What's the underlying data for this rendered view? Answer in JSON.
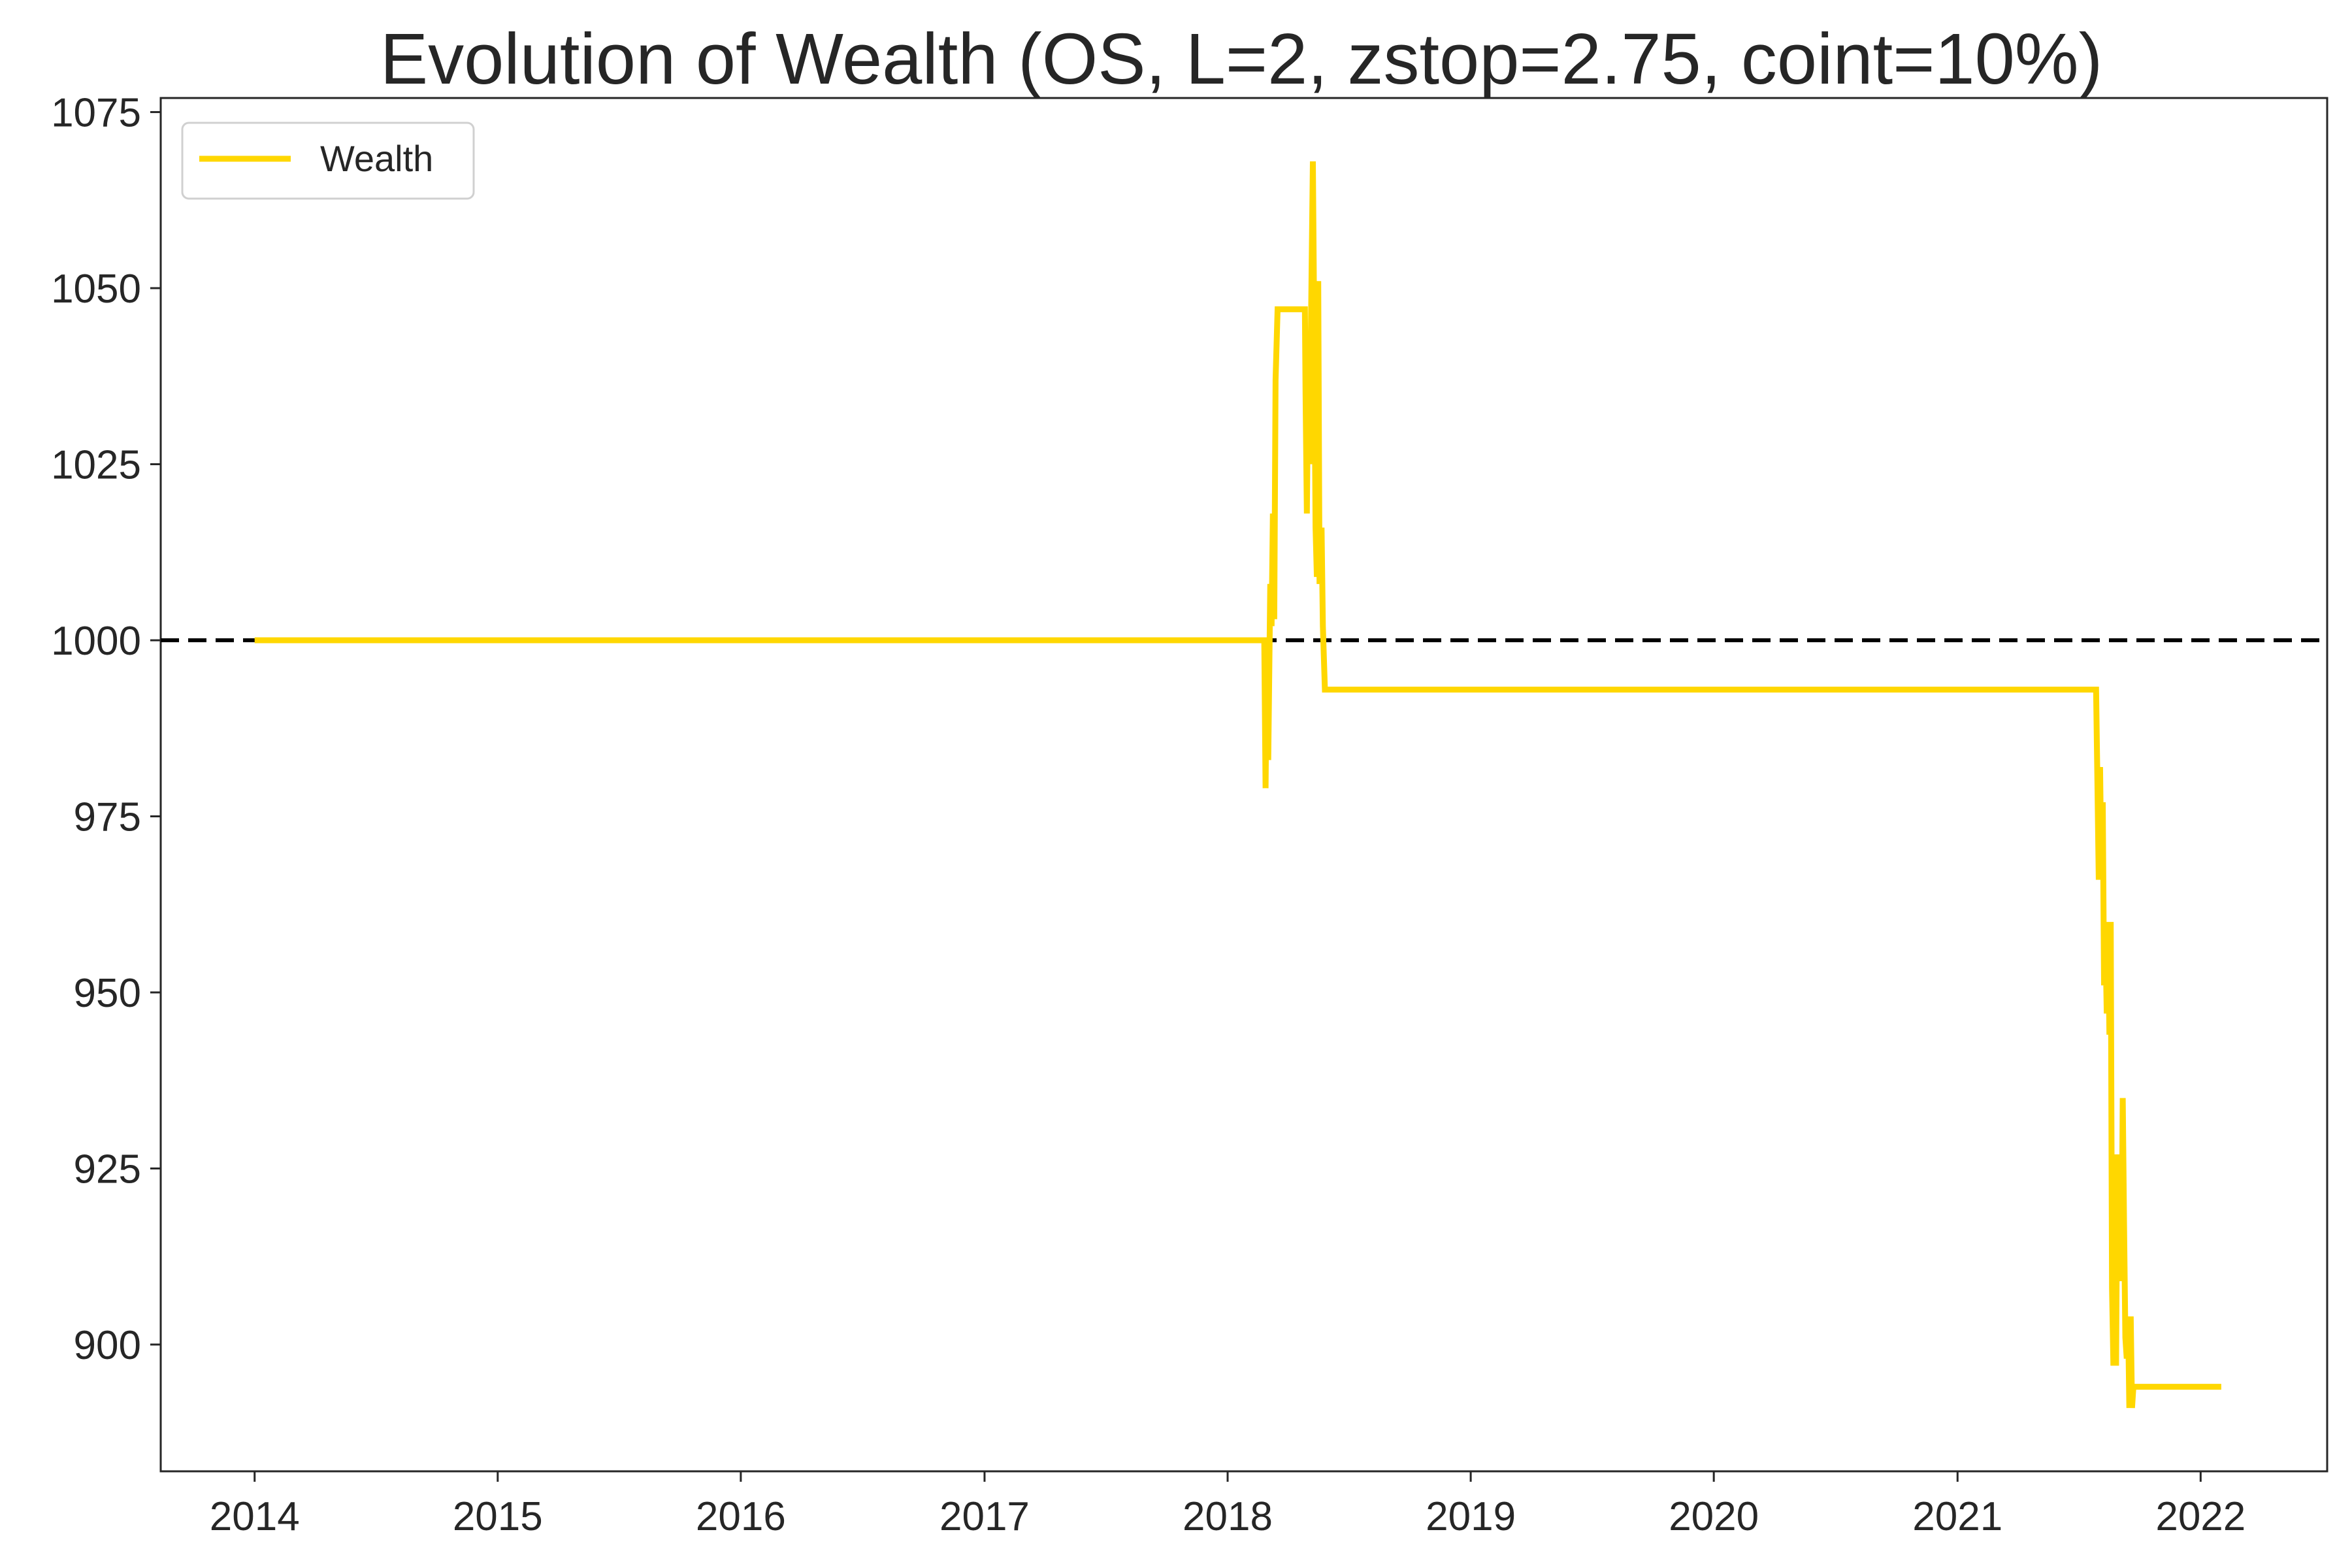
{
  "chart_data": {
    "type": "line",
    "title": "Evolution of Wealth (OS, L=2, zstop=2.75, coint=10%)",
    "xlabel": "",
    "ylabel": "",
    "x_type": "date",
    "xlim": [
      "2013-08-13",
      "2022-07-10"
    ],
    "ylim": [
      882,
      1077
    ],
    "x_ticks": [
      "2014",
      "2015",
      "2016",
      "2017",
      "2018",
      "2019",
      "2020",
      "2021",
      "2022"
    ],
    "y_ticks": [
      900,
      925,
      950,
      975,
      1000,
      1025,
      1050,
      1075
    ],
    "grid": false,
    "legend": {
      "position": "upper left",
      "entries": [
        "Wealth"
      ]
    },
    "reference_line": {
      "y": 1000,
      "style": "dashed",
      "color": "#000000"
    },
    "series": [
      {
        "name": "Wealth",
        "color": "#FFD700",
        "points": [
          [
            "2014-01-01",
            1000
          ],
          [
            "2018-02-25",
            1000
          ],
          [
            "2018-02-27",
            979
          ],
          [
            "2018-03-01",
            1000
          ],
          [
            "2018-03-03",
            983
          ],
          [
            "2018-03-06",
            1008
          ],
          [
            "2018-03-08",
            1002
          ],
          [
            "2018-03-10",
            1018
          ],
          [
            "2018-03-12",
            1003
          ],
          [
            "2018-03-14",
            1037
          ],
          [
            "2018-03-17",
            1047
          ],
          [
            "2018-04-25",
            1047
          ],
          [
            "2018-04-27",
            1047
          ],
          [
            "2018-04-28",
            1035
          ],
          [
            "2018-04-30",
            1018
          ],
          [
            "2018-05-02",
            1040
          ],
          [
            "2018-05-04",
            1025
          ],
          [
            "2018-05-07",
            1052
          ],
          [
            "2018-05-09",
            1068
          ],
          [
            "2018-05-11",
            1045
          ],
          [
            "2018-05-13",
            1016
          ],
          [
            "2018-05-15",
            1009
          ],
          [
            "2018-05-17",
            1051
          ],
          [
            "2018-05-19",
            1008
          ],
          [
            "2018-05-22",
            1016
          ],
          [
            "2018-05-24",
            1002
          ],
          [
            "2018-05-27",
            993
          ],
          [
            "2021-07-28",
            993
          ],
          [
            "2021-07-30",
            980
          ],
          [
            "2021-08-01",
            966
          ],
          [
            "2021-08-03",
            982
          ],
          [
            "2021-08-05",
            967
          ],
          [
            "2021-08-07",
            977
          ],
          [
            "2021-08-09",
            951
          ],
          [
            "2021-08-11",
            958
          ],
          [
            "2021-08-13",
            947
          ],
          [
            "2021-08-15",
            960
          ],
          [
            "2021-08-17",
            944
          ],
          [
            "2021-08-19",
            960
          ],
          [
            "2021-08-21",
            908
          ],
          [
            "2021-08-23",
            897
          ],
          [
            "2021-08-25",
            925
          ],
          [
            "2021-08-27",
            897
          ],
          [
            "2021-08-29",
            927
          ],
          [
            "2021-08-31",
            912
          ],
          [
            "2021-09-02",
            927
          ],
          [
            "2021-09-04",
            909
          ],
          [
            "2021-09-06",
            935
          ],
          [
            "2021-09-08",
            917
          ],
          [
            "2021-09-10",
            901
          ],
          [
            "2021-09-12",
            898
          ],
          [
            "2021-09-14",
            904
          ],
          [
            "2021-09-16",
            891
          ],
          [
            "2021-09-18",
            904
          ],
          [
            "2021-09-20",
            891
          ],
          [
            "2021-09-22",
            894
          ],
          [
            "2022-02-01",
            894
          ]
        ]
      }
    ]
  }
}
